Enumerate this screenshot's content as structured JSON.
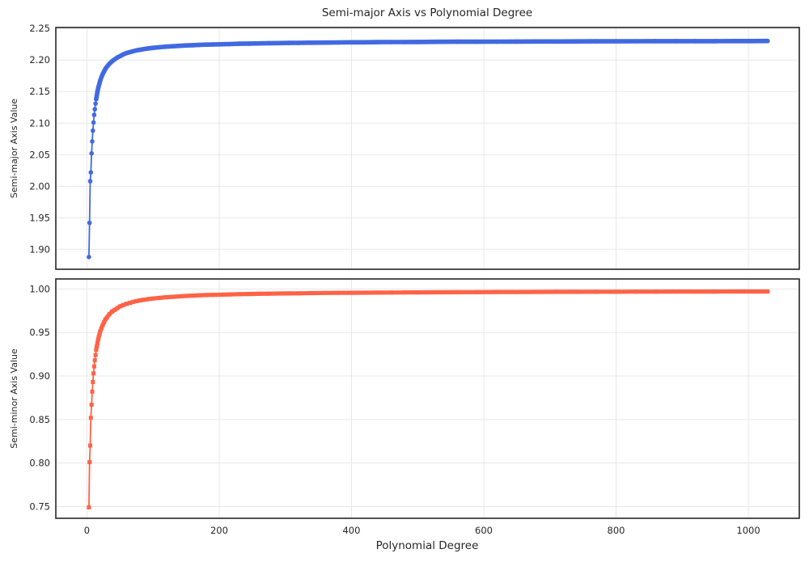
{
  "figure": {
    "background": "#ffffff",
    "text_color": "#262626",
    "spine_color": "#262626",
    "grid_color": "#e8e8e8"
  },
  "chart_data": [
    {
      "type": "line",
      "name": "semi-major-axis",
      "title": "Semi-major Axis vs Polynomial Degree",
      "xlabel": "",
      "ylabel": "Semi-major Axis Value",
      "legend": "none",
      "grid": true,
      "marker": "circle",
      "color": "#4169E1",
      "xlim": [
        -47,
        1077
      ],
      "ylim": [
        1.8685,
        2.2515
      ],
      "xticks": [
        0,
        200,
        400,
        600,
        800,
        1000
      ],
      "xtick_labels": [
        "0",
        "200",
        "400",
        "600",
        "800",
        "1000"
      ],
      "show_xtick_labels": false,
      "yticks": [
        1.9,
        1.95,
        2.0,
        2.05,
        2.1,
        2.15,
        2.2,
        2.25
      ],
      "ytick_labels": [
        "1.90",
        "1.95",
        "2.00",
        "2.05",
        "2.10",
        "2.15",
        "2.20",
        "2.25"
      ],
      "x": [
        3,
        4,
        5,
        6,
        7,
        8,
        9,
        10,
        11,
        12,
        13,
        14,
        15,
        16,
        17,
        18,
        19,
        20,
        22,
        24,
        26,
        28,
        30,
        34,
        38,
        42,
        46,
        50,
        55,
        60,
        65,
        70,
        75,
        80,
        85,
        90,
        95,
        100,
        110,
        120,
        130,
        140,
        150,
        160,
        170,
        180,
        190,
        200,
        215,
        230,
        245,
        260,
        275,
        290,
        305,
        320,
        340,
        360,
        380,
        400,
        420,
        440,
        460,
        480,
        500,
        530,
        560,
        590,
        620,
        650,
        680,
        710,
        740,
        770,
        800,
        830,
        860,
        890,
        920,
        950,
        980,
        1005,
        1029
      ],
      "y": [
        1.888,
        1.942,
        2.008,
        2.022,
        2.052,
        2.071,
        2.088,
        2.101,
        2.113,
        2.122,
        2.131,
        2.138,
        2.144,
        2.15,
        2.155,
        2.159,
        2.163,
        2.167,
        2.173,
        2.178,
        2.182,
        2.186,
        2.189,
        2.194,
        2.198,
        2.201,
        2.204,
        2.206,
        2.209,
        2.211,
        2.2125,
        2.214,
        2.2152,
        2.2162,
        2.2171,
        2.2179,
        2.2186,
        2.2192,
        2.2202,
        2.2211,
        2.2218,
        2.2224,
        2.223,
        2.2235,
        2.2239,
        2.2243,
        2.2246,
        2.2249,
        2.2253,
        2.2257,
        2.226,
        2.2263,
        2.2266,
        2.2268,
        2.227,
        2.2272,
        2.2274,
        2.2276,
        2.2278,
        2.228,
        2.2281,
        2.2283,
        2.2284,
        2.2285,
        2.2286,
        2.2288,
        2.2289,
        2.229,
        2.2291,
        2.2292,
        2.2293,
        2.2294,
        2.2295,
        2.2296,
        2.2296,
        2.2297,
        2.2298,
        2.2298,
        2.2299,
        2.2299,
        2.23,
        2.23,
        2.2301
      ]
    },
    {
      "type": "line",
      "name": "semi-minor-axis",
      "title": "",
      "xlabel": "Polynomial Degree",
      "ylabel": "Semi-minor Axis Value",
      "legend": "none",
      "grid": true,
      "marker": "square",
      "color": "#FF6347",
      "xlim": [
        -47,
        1077
      ],
      "ylim": [
        0.7365,
        1.0115
      ],
      "xticks": [
        0,
        200,
        400,
        600,
        800,
        1000
      ],
      "xtick_labels": [
        "0",
        "200",
        "400",
        "600",
        "800",
        "1000"
      ],
      "show_xtick_labels": true,
      "yticks": [
        0.75,
        0.8,
        0.85,
        0.9,
        0.95,
        1.0
      ],
      "ytick_labels": [
        "0.75",
        "0.80",
        "0.85",
        "0.90",
        "0.95",
        "1.00"
      ],
      "x": [
        3,
        4,
        5,
        6,
        7,
        8,
        9,
        10,
        11,
        12,
        13,
        14,
        15,
        16,
        17,
        18,
        19,
        20,
        22,
        24,
        26,
        28,
        30,
        34,
        38,
        42,
        46,
        50,
        55,
        60,
        65,
        70,
        75,
        80,
        85,
        90,
        95,
        100,
        110,
        120,
        130,
        140,
        150,
        160,
        170,
        180,
        190,
        200,
        215,
        230,
        245,
        260,
        275,
        290,
        305,
        320,
        340,
        360,
        380,
        400,
        420,
        440,
        460,
        480,
        500,
        530,
        560,
        590,
        620,
        650,
        680,
        710,
        740,
        770,
        800,
        830,
        860,
        890,
        920,
        950,
        980,
        1005,
        1029
      ],
      "y": [
        0.749,
        0.801,
        0.82,
        0.852,
        0.867,
        0.882,
        0.893,
        0.903,
        0.911,
        0.918,
        0.924,
        0.93,
        0.934,
        0.938,
        0.942,
        0.945,
        0.948,
        0.951,
        0.955,
        0.959,
        0.962,
        0.965,
        0.967,
        0.971,
        0.974,
        0.976,
        0.978,
        0.98,
        0.9815,
        0.983,
        0.984,
        0.9852,
        0.986,
        0.9868,
        0.9875,
        0.988,
        0.9886,
        0.989,
        0.9898,
        0.9905,
        0.991,
        0.9915,
        0.992,
        0.9924,
        0.9927,
        0.993,
        0.9932,
        0.9934,
        0.9937,
        0.994,
        0.9942,
        0.9944,
        0.9946,
        0.9948,
        0.9949,
        0.995,
        0.9952,
        0.9954,
        0.9955,
        0.9956,
        0.9957,
        0.9958,
        0.9959,
        0.996,
        0.9961,
        0.9962,
        0.9963,
        0.9964,
        0.9965,
        0.9965,
        0.9966,
        0.9967,
        0.9967,
        0.9968,
        0.9968,
        0.9969,
        0.9969,
        0.997,
        0.997,
        0.997,
        0.9971,
        0.9971,
        0.9971
      ]
    }
  ]
}
